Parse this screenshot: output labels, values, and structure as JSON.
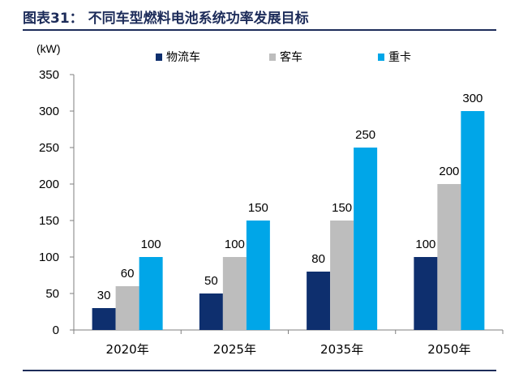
{
  "header": {
    "title": "图表31：  不同车型燃料电池系统功率发展目标"
  },
  "chart_data": {
    "type": "bar",
    "unit_label": "(kW)",
    "categories": [
      "2020年",
      "2025年",
      "2035年",
      "2050年"
    ],
    "series": [
      {
        "name": "物流车",
        "values": [
          30,
          50,
          80,
          100
        ],
        "color": "#0e2f6e"
      },
      {
        "name": "客车",
        "values": [
          60,
          100,
          150,
          200
        ],
        "color": "#bdbdbd"
      },
      {
        "name": "重卡",
        "values": [
          100,
          150,
          250,
          300
        ],
        "color": "#00a6e8"
      }
    ],
    "yticks": [
      "0",
      "50",
      "100",
      "150",
      "200",
      "250",
      "300",
      "350"
    ],
    "ylim": [
      0,
      350
    ],
    "legend_position": "top",
    "grid": false
  }
}
